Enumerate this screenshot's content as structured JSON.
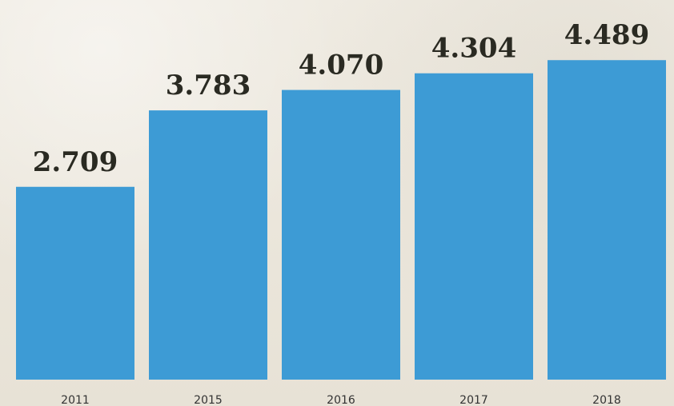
{
  "chart_data": {
    "type": "bar",
    "categories": [
      "2011",
      "2015",
      "2016",
      "2017",
      "2018"
    ],
    "values": [
      2.709,
      3.783,
      4.07,
      4.304,
      4.489
    ],
    "value_labels": [
      "2.709",
      "3.783",
      "4.070",
      "4.304",
      "4.489"
    ],
    "bar_color": "#3d9bd5",
    "title": "",
    "xlabel": "",
    "ylabel": "",
    "ylim": [
      0,
      4.75
    ],
    "grid": false,
    "legend": "none"
  }
}
